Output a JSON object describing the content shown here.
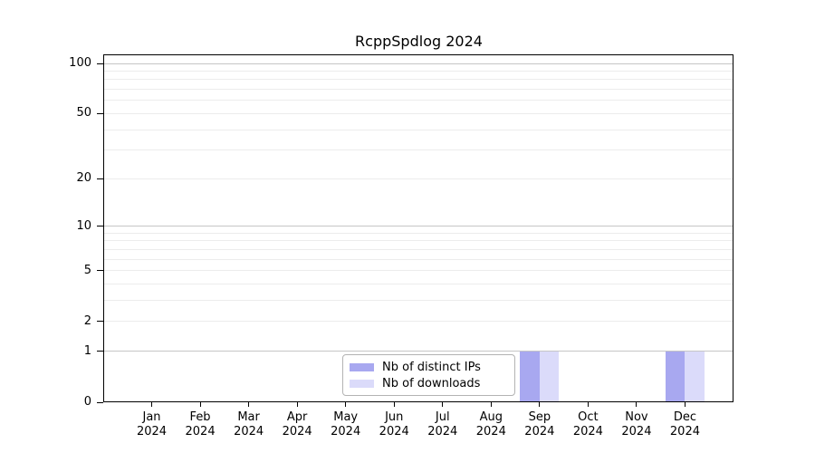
{
  "figure": {
    "background": "#ffffff"
  },
  "chart_data": {
    "type": "bar",
    "title": "RcppSpdlog 2024",
    "categories": [
      "Jan",
      "Feb",
      "Mar",
      "Apr",
      "May",
      "Jun",
      "Jul",
      "Aug",
      "Sep",
      "Oct",
      "Nov",
      "Dec"
    ],
    "x_year_label": "2024",
    "series": [
      {
        "name": "Nb of distinct IPs",
        "color": "#a8a8f0",
        "values": [
          0,
          0,
          0,
          0,
          0,
          0,
          0,
          0,
          1,
          0,
          0,
          1
        ]
      },
      {
        "name": "Nb of downloads",
        "color": "#dbdbfa",
        "values": [
          0,
          0,
          0,
          0,
          0,
          0,
          0,
          0,
          1,
          0,
          0,
          1
        ]
      }
    ],
    "xlabel": "",
    "ylabel": "",
    "y_axis": {
      "scale": "log1p",
      "tick_values": [
        0,
        1,
        2,
        5,
        10,
        20,
        50,
        100
      ],
      "tick_labels": [
        "0",
        "1",
        "2",
        "5",
        "10",
        "20",
        "50",
        "100"
      ],
      "major_gridline_values": [
        1,
        10,
        100
      ],
      "minor_gridline_values": [
        2,
        3,
        4,
        5,
        6,
        7,
        8,
        9,
        20,
        30,
        40,
        50,
        60,
        70,
        80,
        90
      ],
      "ylim": [
        0,
        113
      ]
    },
    "grid": true,
    "legend_position": "inside lower center",
    "bar_width_fraction": 0.4
  },
  "colors": {
    "axis_spine": "#000000",
    "major_grid": "#c6c6c6",
    "minor_grid": "#ececec",
    "tick_text": "#000000",
    "legend_border": "#b3b3b3",
    "legend_background": "#ffffff"
  }
}
